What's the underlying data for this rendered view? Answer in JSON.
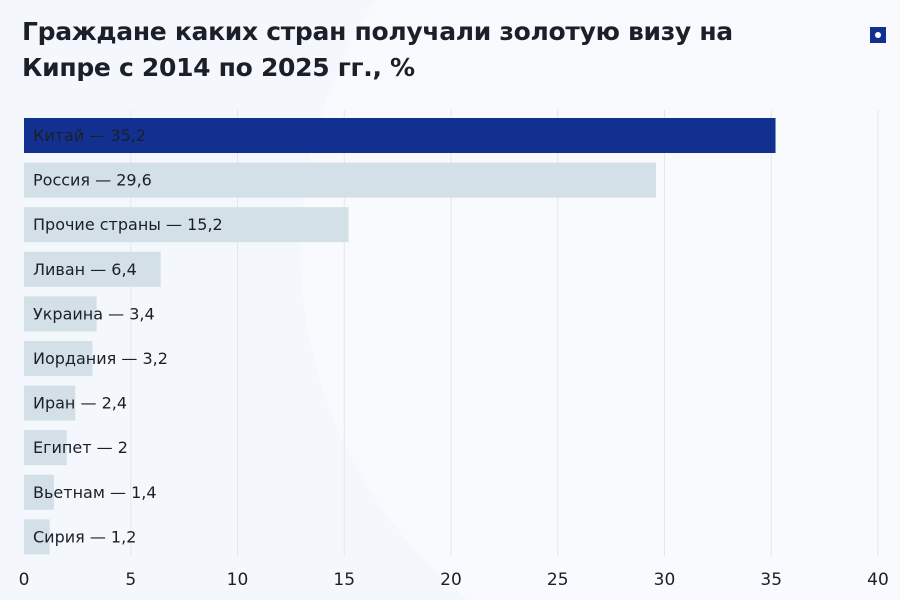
{
  "chart_data": {
    "type": "bar",
    "orientation": "horizontal",
    "title": "Граждане каких стран получали золотую визу на Кипре с 2014 по 2025 гг., %",
    "categories": [
      "Китай",
      "Россия",
      "Прочие страны",
      "Ливан",
      "Украина",
      "Иордания",
      "Иран",
      "Египет",
      "Вьетнам",
      "Сирия"
    ],
    "values": [
      35.2,
      29.6,
      15.2,
      6.4,
      3.4,
      3.2,
      2.4,
      2,
      1.4,
      1.2
    ],
    "labels": [
      "Китай — 35,2",
      "Россия — 29,6",
      "Прочие страны — 15,2",
      "Ливан — 6,4",
      "Украина — 3,4",
      "Иордания — 3,2",
      "Иран — 2,4",
      "Египет — 2",
      "Вьетнам — 1,4",
      "Сирия — 1,2"
    ],
    "xlim": [
      0,
      40
    ],
    "xticks": [
      "0",
      "5",
      "10",
      "15",
      "20",
      "25",
      "30",
      "35",
      "40"
    ],
    "grid": true,
    "colors": {
      "highlight": "#12308f",
      "bar": "#d3e0e8",
      "highlight_text": "#ffffff",
      "text": "#1b1f2a",
      "grid": "#e3e7ec"
    }
  },
  "logo_icon": "square-dot-logo-icon"
}
